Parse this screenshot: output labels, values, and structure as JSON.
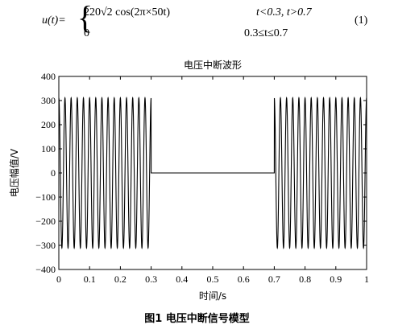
{
  "equation": {
    "lhs": "u(t)=",
    "brace": "{",
    "line1_expr": "220√2 cos(2π×50t)",
    "line1_cond": "t<0.3, t>0.7",
    "line2_expr": "0",
    "line2_cond": "0.3≤t≤0.7",
    "number": "(1)"
  },
  "caption": "图1   电压中断信号模型",
  "chart_data": {
    "type": "line",
    "title": "电压中断波形",
    "xlabel": "时间/s",
    "ylabel": "电压幅值/V",
    "xlim": [
      0,
      1
    ],
    "ylim": [
      -400,
      400
    ],
    "xticks": [
      "0",
      "0.1",
      "0.2",
      "0.3",
      "0.4",
      "0.5",
      "0.6",
      "0.7",
      "0.8",
      "0.9",
      "1"
    ],
    "yticks": [
      "400",
      "300",
      "200",
      "100",
      "0",
      "−100",
      "−200",
      "−300",
      "−400"
    ],
    "amplitude": 311,
    "frequency_hz": 50,
    "interruption": [
      0.3,
      0.7
    ],
    "grid": false,
    "color": "#000000"
  }
}
